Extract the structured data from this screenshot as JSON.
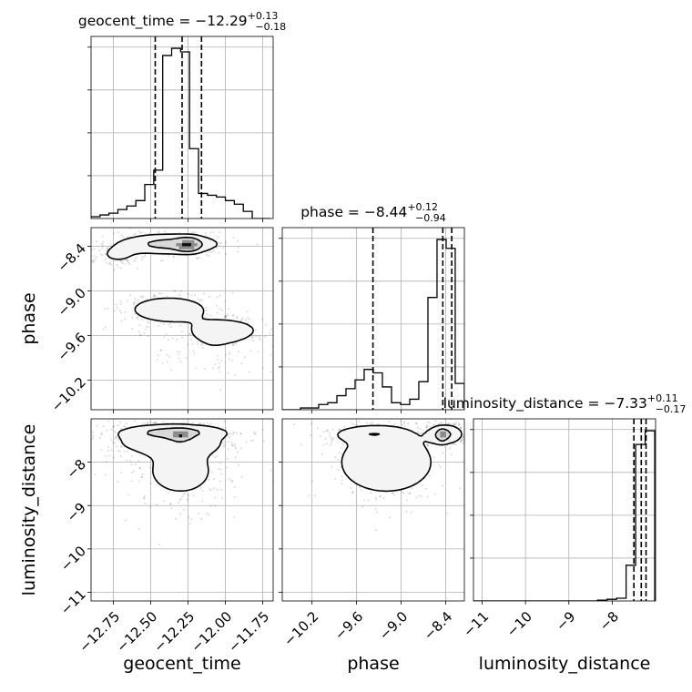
{
  "chart_data": {
    "type": "corner",
    "parameters": [
      {
        "name": "geocent_time",
        "label": "geocent_time",
        "median": "-12.29",
        "plus": "+0.13",
        "minus": "-0.18",
        "range": [
          -12.9,
          -11.68
        ],
        "ticks": [
          -12.75,
          -12.5,
          -12.25,
          -12.0,
          -11.75
        ],
        "tick_labels": [
          "−12.75",
          "−12.50",
          "−12.25",
          "−12.00",
          "−11.75"
        ],
        "quantile_lines": [
          -12.47,
          -12.29,
          -12.16
        ]
      },
      {
        "name": "phase",
        "label": "phase",
        "median": "-8.44",
        "plus": "+0.12",
        "minus": "-0.94",
        "range": [
          -10.6,
          -8.15
        ],
        "ticks": [
          -10.2,
          -9.6,
          -9.0,
          -8.4
        ],
        "tick_labels": [
          "−10.2",
          "−9.6",
          "−9.0",
          "−8.4"
        ],
        "quantile_lines": [
          -9.38,
          -8.44,
          -8.32
        ]
      },
      {
        "name": "luminosity_distance",
        "label": "luminosity_distance",
        "median": "-7.33",
        "plus": "+0.11",
        "minus": "-0.17",
        "range": [
          -11.2,
          -7.0
        ],
        "ticks": [
          -11,
          -10,
          -9,
          -8
        ],
        "tick_labels": [
          "−11",
          "−10",
          "−9",
          "−8"
        ],
        "quantile_lines": [
          -7.5,
          -7.33,
          -7.22
        ]
      }
    ],
    "histograms": [
      {
        "param": "geocent_time",
        "edges": [
          -12.9,
          -12.84,
          -12.78,
          -12.72,
          -12.66,
          -12.6,
          -12.54,
          -12.48,
          -12.42,
          -12.36,
          -12.3,
          -12.24,
          -12.18,
          -12.12,
          -12.06,
          -12.0,
          -11.94,
          -11.88,
          -11.82,
          -11.76,
          -11.7
        ],
        "counts": [
          1,
          2,
          3,
          5,
          7,
          10,
          19,
          27,
          91,
          95,
          93,
          39,
          14,
          13,
          12,
          10,
          8,
          4,
          0,
          0
        ]
      },
      {
        "param": "phase",
        "edges": [
          -10.6,
          -10.478,
          -10.355,
          -10.233,
          -10.11,
          -9.988,
          -9.865,
          -9.743,
          -9.62,
          -9.498,
          -9.375,
          -9.253,
          -9.13,
          -9.008,
          -8.885,
          -8.763,
          -8.64,
          -8.518,
          -8.395,
          -8.273,
          -8.15
        ],
        "counts": [
          0,
          0,
          1,
          1,
          3,
          4,
          8,
          12,
          17,
          23,
          21,
          13,
          4,
          3,
          6,
          16,
          64,
          97,
          92,
          15
        ]
      },
      {
        "param": "luminosity_distance",
        "edges": [
          -11.2,
          -10.98,
          -10.76,
          -10.54,
          -10.32,
          -10.1,
          -9.88,
          -9.66,
          -9.44,
          -9.22,
          -9.0,
          -8.78,
          -8.56,
          -8.34,
          -8.12,
          -7.9,
          -7.68,
          -7.46,
          -7.24,
          -7.02
        ],
        "counts": [
          0,
          0,
          0,
          0,
          0,
          0,
          0,
          0,
          0,
          0,
          0,
          0,
          0,
          0.3,
          0.6,
          1,
          13,
          57,
          62
        ]
      }
    ],
    "panels": [
      {
        "x": "geocent_time",
        "y": "phase",
        "peaks": [
          {
            "x": -12.25,
            "y": -8.38,
            "sx": 0.05,
            "sy": 0.055,
            "w": 0.36
          },
          {
            "x": -12.38,
            "y": -8.37,
            "sx": 0.2,
            "sy": 0.08,
            "w": 0.24
          },
          {
            "x": -12.72,
            "y": -8.52,
            "sx": 0.09,
            "sy": 0.08,
            "w": 0.08
          },
          {
            "x": -12.38,
            "y": -9.25,
            "sx": 0.18,
            "sy": 0.12,
            "w": 0.14
          },
          {
            "x": -12.0,
            "y": -9.52,
            "sx": 0.14,
            "sy": 0.09,
            "w": 0.12
          },
          {
            "x": -12.1,
            "y": -9.8,
            "sx": 0.26,
            "sy": 0.22,
            "w": 0.06
          }
        ]
      },
      {
        "x": "geocent_time",
        "y": "luminosity_distance",
        "peaks": [
          {
            "x": -12.3,
            "y": -7.38,
            "sx": 0.04,
            "sy": 0.07,
            "w": 0.45
          },
          {
            "x": -12.35,
            "y": -7.3,
            "sx": 0.2,
            "sy": 0.1,
            "w": 0.3
          },
          {
            "x": -12.4,
            "y": -7.55,
            "sx": 0.3,
            "sy": 0.18,
            "w": 0.12
          },
          {
            "x": -12.3,
            "y": -8.2,
            "sx": 0.22,
            "sy": 0.55,
            "w": 0.13
          }
        ]
      },
      {
        "x": "phase",
        "y": "luminosity_distance",
        "peaks": [
          {
            "x": -8.45,
            "y": -7.38,
            "sx": 0.04,
            "sy": 0.07,
            "w": 0.45
          },
          {
            "x": -8.4,
            "y": -7.35,
            "sx": 0.14,
            "sy": 0.13,
            "w": 0.22
          },
          {
            "x": -9.4,
            "y": -7.35,
            "sx": 0.3,
            "sy": 0.11,
            "w": 0.15
          },
          {
            "x": -9.2,
            "y": -8.0,
            "sx": 0.45,
            "sy": 0.5,
            "w": 0.18
          }
        ]
      }
    ]
  }
}
